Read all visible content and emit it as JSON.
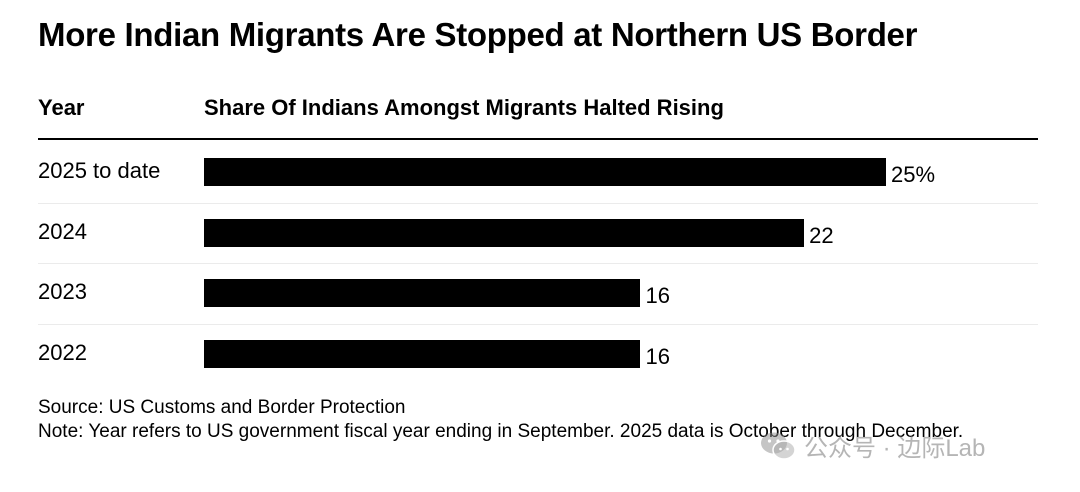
{
  "title": "More Indian Migrants Are Stopped at Northern US Border",
  "columns": {
    "year": "Year",
    "share": "Share Of Indians Amongst Migrants Halted Rising"
  },
  "chart_data": {
    "type": "bar",
    "orientation": "horizontal",
    "title": "More Indian Migrants Are Stopped at Northern US Border",
    "xlabel": "Share Of Indians Amongst Migrants Halted Rising",
    "ylabel": "Year",
    "categories": [
      "2025 to date",
      "2024",
      "2023",
      "2022"
    ],
    "values": [
      25,
      22,
      16,
      16
    ],
    "value_labels": [
      "25%",
      "22",
      "16",
      "16"
    ],
    "units": "%",
    "xlim": [
      0,
      25
    ],
    "grid": false,
    "legend": "none"
  },
  "footer": {
    "source": "Source: US Customs and Border Protection",
    "note": "Note: Year refers to US government fiscal year ending in September. 2025 data is October through December."
  },
  "watermark": {
    "text": "公众号 · 边际Lab",
    "icon": "wechat-icon"
  }
}
